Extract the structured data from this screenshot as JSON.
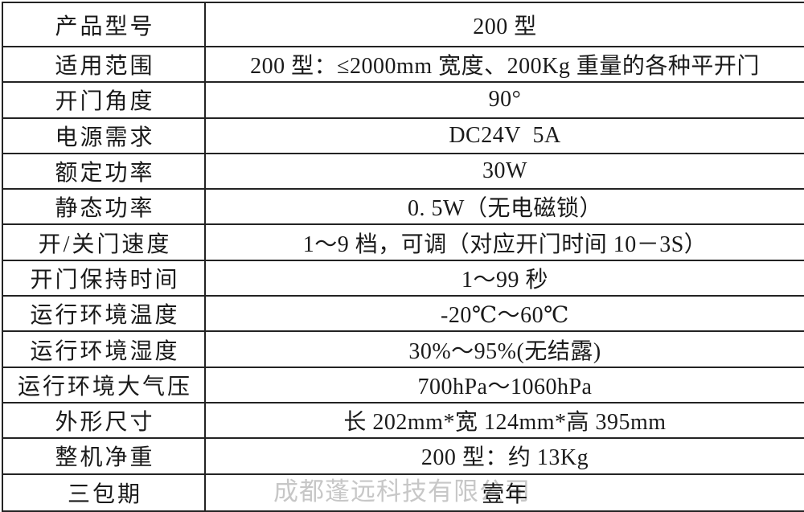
{
  "document": {
    "type": "product-specification-table",
    "colors": {
      "border": "#232323",
      "text": "#1a1a1a",
      "background": "#ffffff",
      "watermark": "#c7c7c7"
    }
  },
  "watermark": {
    "text": "成都蓬远科技有限公司"
  },
  "table": {
    "rows": [
      {
        "label": "产品型号",
        "value": "200 型"
      },
      {
        "label": "适用范围",
        "value": "200 型：≤2000mm 宽度、200Kg 重量的各种平开门"
      },
      {
        "label": "开门角度",
        "value": "90°"
      },
      {
        "label": "电源需求",
        "value": "DC24V  5A"
      },
      {
        "label": "额定功率",
        "value": "30W"
      },
      {
        "label": "静态功率",
        "value": "0. 5W（无电磁锁）"
      },
      {
        "label": "开/关门速度",
        "value": "1～9 档，可调（对应开门时间 10－3S）"
      },
      {
        "label": "开门保持时间",
        "value": "1～99 秒"
      },
      {
        "label": "运行环境温度",
        "value": "-20℃～60℃"
      },
      {
        "label": "运行环境湿度",
        "value": "30%～95%(无结露)"
      },
      {
        "label": "运行环境大气压",
        "value": "700hPa～1060hPa"
      },
      {
        "label": "外形尺寸",
        "value": "长 202mm*宽 124mm*高 395mm"
      },
      {
        "label": "整机净重",
        "value": "200 型：约 13Kg"
      },
      {
        "label": "三包期",
        "value": "壹年"
      }
    ]
  }
}
